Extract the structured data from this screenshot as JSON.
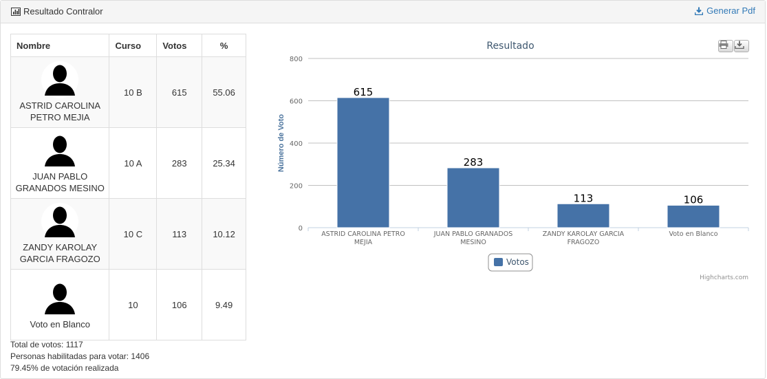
{
  "header": {
    "title": "Resultado Contralor",
    "pdf_label": "Generar Pdf"
  },
  "table": {
    "headers": [
      "Nombre",
      "Curso",
      "Votos",
      "%"
    ],
    "rows": [
      {
        "name_line1": "ASTRID CAROLINA",
        "name_line2": "PETRO MEJIA",
        "curso": "10 B",
        "votos": "615",
        "pct": "55.06"
      },
      {
        "name_line1": "JUAN PABLO",
        "name_line2": "GRANADOS MESINO",
        "curso": "10 A",
        "votos": "283",
        "pct": "25.34"
      },
      {
        "name_line1": "ZANDY KAROLAY",
        "name_line2": "GARCIA FRAGOZO",
        "curso": "10 C",
        "votos": "113",
        "pct": "10.12"
      },
      {
        "name_line1": "Voto en Blanco",
        "name_line2": "",
        "curso": "10",
        "votos": "106",
        "pct": "9.49"
      }
    ]
  },
  "summary": {
    "total": "Total de votos: 1117",
    "habilitadas": "Personas habilitadas para votar: 1406",
    "porcentaje": "79.45% de votación realizada"
  },
  "chart_data": {
    "type": "bar",
    "title": "Resultado",
    "xlabel": "",
    "ylabel": "Número de Voto",
    "categories": [
      [
        "ASTRID CAROLINA PETRO",
        "MEJIA"
      ],
      [
        "JUAN PABLO GRANADOS",
        "MESINO"
      ],
      [
        "ZANDY KAROLAY GARCIA",
        "FRAGOZO"
      ],
      [
        "Voto en Blanco"
      ]
    ],
    "series": [
      {
        "name": "Votos",
        "values": [
          615,
          283,
          113,
          106
        ]
      }
    ],
    "ylim": [
      0,
      800
    ],
    "yticks": [
      0,
      200,
      400,
      600,
      800
    ],
    "grid": true,
    "legend": "bottom-center",
    "credits": "Highcharts.com",
    "bar_color": "#4572a7"
  }
}
